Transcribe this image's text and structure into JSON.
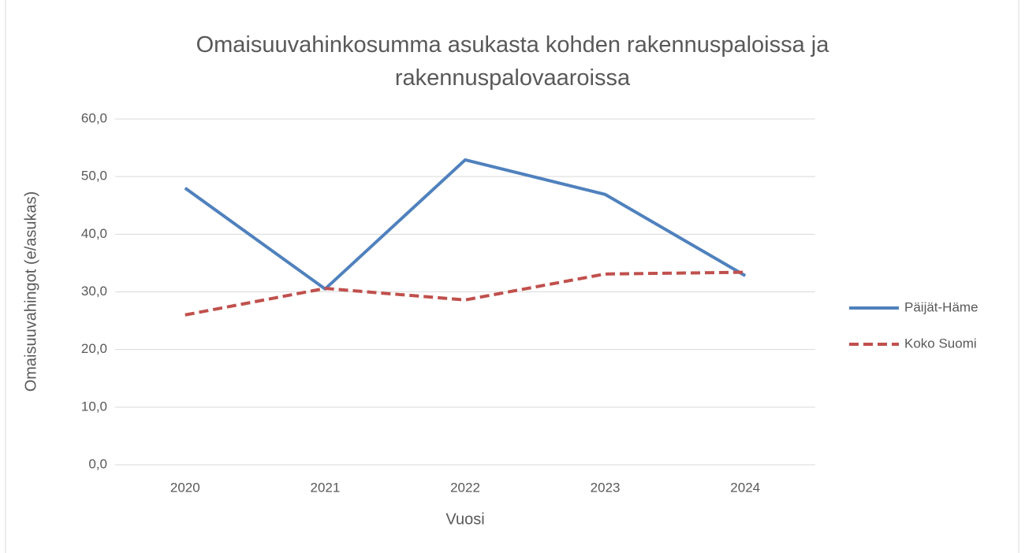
{
  "chart_data": {
    "type": "line",
    "title": "Omaisuuvahinkosumma asukasta kohden rakennuspaloissa ja rakennuspalovaaroissa",
    "x_label": "Vuosi",
    "y_label": "Omaisuuvahingot (e/asukas)",
    "categories": [
      "2020",
      "2021",
      "2022",
      "2023",
      "2024"
    ],
    "series": [
      {
        "name": "Päijät-Häme",
        "color": "#4f81bd",
        "dashed": false,
        "values": [
          48.0,
          30.5,
          52.9,
          46.9,
          32.8
        ]
      },
      {
        "name": "Koko Suomi",
        "color": "#c0504d",
        "dashed": true,
        "values": [
          26.0,
          30.6,
          28.6,
          33.1,
          33.4
        ]
      }
    ],
    "ylim": [
      0,
      60
    ],
    "yticks": [
      {
        "value": 0,
        "label": "0,0"
      },
      {
        "value": 10,
        "label": "10,0"
      },
      {
        "value": 20,
        "label": "20,0"
      },
      {
        "value": 30,
        "label": "30,0"
      },
      {
        "value": 40,
        "label": "40,0"
      },
      {
        "value": 50,
        "label": "50,0"
      },
      {
        "value": 60,
        "label": "60,0"
      }
    ],
    "grid": true,
    "legend": "right"
  }
}
